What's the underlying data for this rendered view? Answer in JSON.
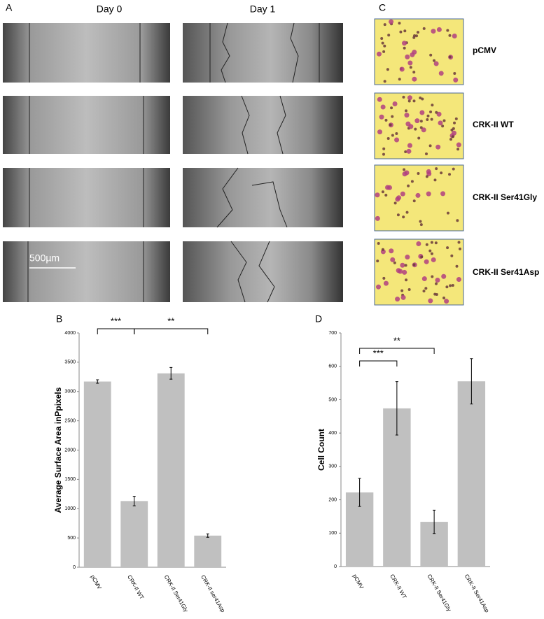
{
  "panels": {
    "a": "A",
    "b": "B",
    "c": "C",
    "d": "D"
  },
  "day_labels": [
    "Day 0",
    "Day 1"
  ],
  "sample_labels": [
    "pCMV",
    "CRK-II WT",
    "CRK-II Ser41Gly",
    "CRK-II Ser41Asp"
  ],
  "scale_bar": "500µm",
  "chart_data": [
    {
      "type": "bar",
      "y_label": "Average Surface Area inPpixels",
      "categories": [
        "pCMV",
        "CRK-II WT",
        "CRK-II Ser41Gly",
        "CRK-II ser41Asp"
      ],
      "values": [
        3170,
        1130,
        3310,
        540
      ],
      "errors": [
        30,
        80,
        100,
        30
      ],
      "color": "#c0c0c0",
      "ylim": [
        0,
        4000
      ],
      "yticks": [
        0,
        500,
        1000,
        1500,
        2000,
        2500,
        3000,
        3500,
        4000
      ],
      "annotations": [
        "***",
        "**"
      ]
    },
    {
      "type": "bar",
      "y_label": "Cell Count",
      "categories": [
        "pCMV",
        "CRK-II WT",
        "CRK-II Ser41Gly",
        "CRK-II Ser41Asp"
      ],
      "values": [
        222,
        474,
        134,
        555
      ],
      "errors": [
        42,
        80,
        35,
        68
      ],
      "color": "#c0c0c0",
      "ylim": [
        0,
        700
      ],
      "yticks": [
        0,
        100,
        200,
        300,
        400,
        500,
        600,
        700
      ],
      "annotations": [
        "**",
        "***"
      ]
    }
  ]
}
